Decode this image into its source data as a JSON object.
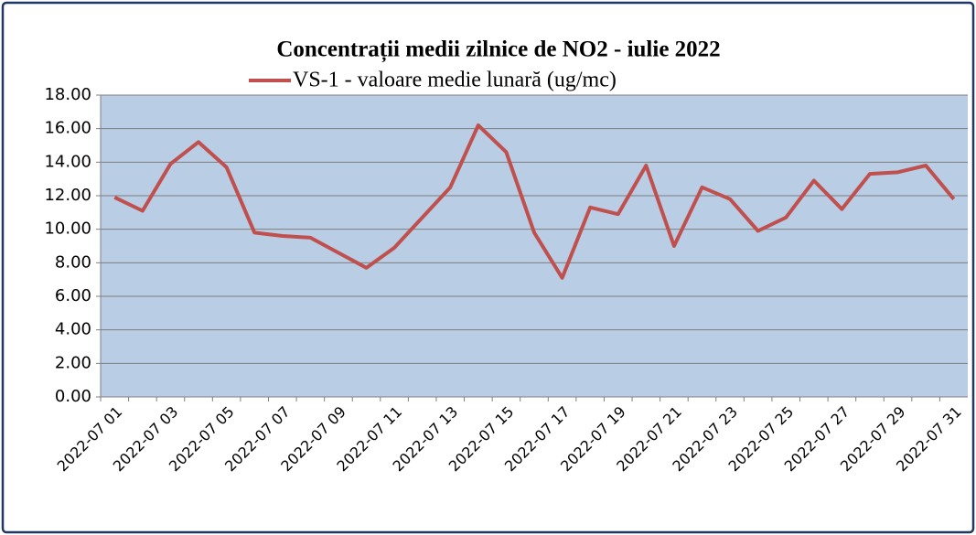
{
  "chart_data": {
    "type": "line",
    "title": "Concentrații medii zilnice de NO2 - iulie 2022",
    "categories": [
      "2022-07 01",
      null,
      "2022-07 03",
      null,
      "2022-07 05",
      null,
      "2022-07 07",
      null,
      "2022-07 09",
      null,
      "2022-07 11",
      null,
      "2022-07 13",
      null,
      "2022-07 15",
      null,
      "2022-07 17",
      null,
      "2022-07 19",
      null,
      "2022-07 21",
      null,
      "2022-07 23",
      null,
      "2022-07 25",
      null,
      "2022-07 27",
      null,
      "2022-07 29",
      null,
      "2022-07 31"
    ],
    "series": [
      {
        "name": "VS-1 - valoare medie lunară (ug/mc)",
        "color": "#c0504d",
        "values": [
          11.9,
          11.1,
          13.9,
          15.2,
          13.7,
          9.8,
          9.6,
          9.5,
          8.6,
          7.7,
          8.9,
          10.7,
          12.5,
          16.2,
          14.6,
          9.8,
          7.1,
          11.3,
          10.9,
          13.8,
          9.0,
          12.5,
          11.8,
          9.9,
          10.7,
          12.9,
          11.2,
          13.3,
          13.4,
          13.8,
          11.8
        ]
      }
    ],
    "ylim": [
      0,
      18
    ],
    "yticks": [
      {
        "value": 0,
        "label": "0.00"
      },
      {
        "value": 2,
        "label": "2.00"
      },
      {
        "value": 4,
        "label": "4.00"
      },
      {
        "value": 6,
        "label": "6.00"
      },
      {
        "value": 8,
        "label": "8.00"
      },
      {
        "value": 10,
        "label": "10.00"
      },
      {
        "value": 12,
        "label": "12.00"
      },
      {
        "value": 14,
        "label": "14.00"
      },
      {
        "value": 16,
        "label": "16.00"
      },
      {
        "value": 18,
        "label": "18.00"
      }
    ],
    "grid": true,
    "plot_background": "#b9cde5"
  }
}
